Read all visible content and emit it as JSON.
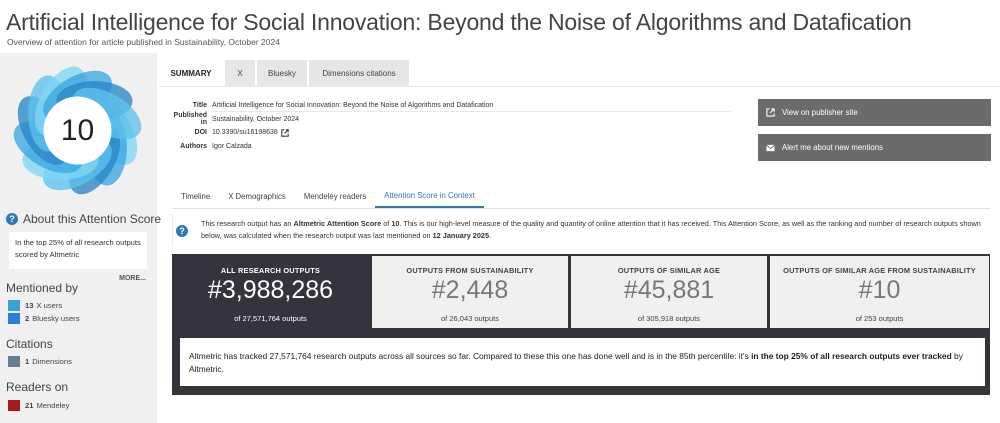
{
  "header": {
    "title": "Artificial Intelligence for Social Innovation: Beyond the Noise of Algorithms and Datafication",
    "subtitle": "Overview of attention for article published in Sustainability, October 2024"
  },
  "score": {
    "value": "10",
    "colors": [
      "#7fd6f5",
      "#3aa7df",
      "#2a86c7",
      "#5ec1ec"
    ]
  },
  "sidebar": {
    "about_label": "About this Attention Score",
    "top_text": "In the top 25% of all research outputs scored by Altmetric",
    "more_label": "MORE...",
    "mentioned_heading": "Mentioned by",
    "mentions": [
      {
        "count": "13",
        "label": "X users",
        "color": "#3aa2d6"
      },
      {
        "count": "2",
        "label": "Bluesky users",
        "color": "#2b7de0"
      }
    ],
    "citations_heading": "Citations",
    "citations": [
      {
        "count": "1",
        "label": "Dimensions",
        "color": "#6a7d8c"
      }
    ],
    "readers_heading": "Readers on",
    "readers": [
      {
        "count": "21",
        "label": "Mendeley",
        "color": "#a61b1b"
      }
    ]
  },
  "tabs": [
    {
      "label": "SUMMARY",
      "active": true
    },
    {
      "label": "X",
      "active": false
    },
    {
      "label": "Bluesky",
      "active": false
    },
    {
      "label": "Dimensions citations",
      "active": false
    }
  ],
  "article": {
    "title_label": "Title",
    "title_value": "Artificial Intelligence for Social Innovation: Beyond the Noise of Algorithms and Datafication",
    "published_label": "Published in",
    "published_value": "Sustainability, October 2024",
    "doi_label": "DOI",
    "doi_value": "10.3390/su16198638",
    "authors_label": "Authors",
    "authors_value": "Igor Calzada"
  },
  "actions": {
    "publisher_label": "View on publisher site",
    "alert_label": "Alert me about new mentions"
  },
  "subtabs": [
    {
      "label": "Timeline",
      "active": false
    },
    {
      "label": "X Demographics",
      "active": false
    },
    {
      "label": "Mendeley readers",
      "active": false
    },
    {
      "label": "Attention Score in Context",
      "active": true
    }
  ],
  "score_info": {
    "part1": "This research output has an ",
    "bold1": "Altmetric Attention Score",
    "part2": " of ",
    "bold2": "10",
    "part3": ". This is our high-level measure of the quality and quantity of online attention that it has received. This Attention Score, as well as the ranking and number of research outputs shown below, was calculated when the research output was last mentioned on ",
    "bold3": "12 January 2025",
    "part4": "."
  },
  "stats": [
    {
      "title": "ALL RESEARCH OUTPUTS",
      "value": "#3,988,286",
      "of": "of 27,571,764 outputs"
    },
    {
      "title": "OUTPUTS FROM SUSTAINABILITY",
      "value": "#2,448",
      "of": "of 26,043 outputs"
    },
    {
      "title": "OUTPUTS OF SIMILAR AGE",
      "value": "#45,881",
      "of": "of 305,918 outputs"
    },
    {
      "title": "OUTPUTS OF SIMILAR AGE FROM SUSTAINABILITY",
      "value": "#10",
      "of": "of 253 outputs"
    }
  ],
  "tracked": {
    "part1": "Altmetric has tracked 27,571,764 research outputs across all sources so far. Compared to these this one has done well and is in the 85th percentile: it's ",
    "bold": "in the top 25% of all research outputs ever tracked",
    "part2": " by Altmetric."
  }
}
